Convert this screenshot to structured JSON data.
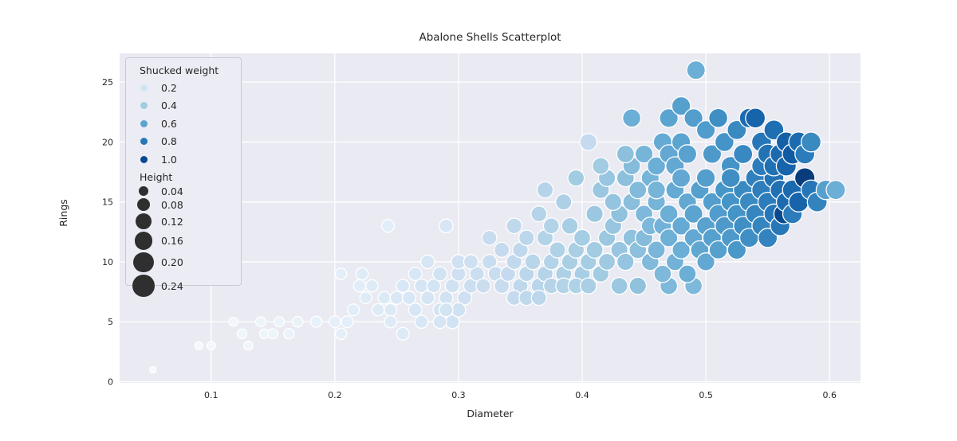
{
  "figure": {
    "background": "#ffffff"
  },
  "style": {
    "plot_background": "#eaeaf2",
    "grid_color": "#ffffff",
    "text_color": "#262626",
    "point_edge_color": "#ffffff",
    "legend_background": "#ececf4",
    "legend_border": "#c9c9d4",
    "size_legend_dot_color": "#2f2f2f",
    "colormap_name": "Blues",
    "colormap_stops": [
      [
        0.0,
        "#f7fbff"
      ],
      [
        0.125,
        "#deebf7"
      ],
      [
        0.25,
        "#c6dbef"
      ],
      [
        0.375,
        "#9ecae1"
      ],
      [
        0.5,
        "#6baed6"
      ],
      [
        0.625,
        "#4292c6"
      ],
      [
        0.75,
        "#2171b5"
      ],
      [
        0.875,
        "#08519c"
      ],
      [
        1.0,
        "#08306b"
      ]
    ]
  },
  "chart_data": {
    "type": "scatter",
    "title": "Abalone Shells Scatterplot",
    "xlabel": "Diameter",
    "ylabel": "Rings",
    "x_ticks": [
      0.1,
      0.2,
      0.3,
      0.4,
      0.5,
      0.6
    ],
    "y_ticks": [
      0,
      5,
      10,
      15,
      20,
      25
    ],
    "xlim": [
      0.026,
      0.625
    ],
    "ylim": [
      -0.1,
      27.4
    ],
    "grid": true,
    "legend_position": "upper left",
    "hue": {
      "name": "Shucked weight",
      "vmin": 0.0,
      "vmax": 1.1,
      "legend_values": [
        "0.2",
        "0.4",
        "0.6",
        "0.8",
        "1.0"
      ]
    },
    "size": {
      "name": "Height",
      "domain": [
        0.01,
        0.25
      ],
      "legend_values": [
        "0.04",
        "0.08",
        "0.12",
        "0.16",
        "0.20",
        "0.24"
      ]
    },
    "columns": [
      "diameter",
      "rings",
      "shucked_weight",
      "height"
    ],
    "points": [
      [
        0.053,
        1,
        0.02,
        0.015
      ],
      [
        0.09,
        3,
        0.03,
        0.025
      ],
      [
        0.1,
        3,
        0.035,
        0.03
      ],
      [
        0.118,
        5,
        0.045,
        0.035
      ],
      [
        0.125,
        4,
        0.05,
        0.04
      ],
      [
        0.13,
        3,
        0.05,
        0.035
      ],
      [
        0.14,
        5,
        0.06,
        0.045
      ],
      [
        0.143,
        4,
        0.055,
        0.04
      ],
      [
        0.15,
        4,
        0.06,
        0.045
      ],
      [
        0.155,
        5,
        0.065,
        0.045
      ],
      [
        0.163,
        4,
        0.07,
        0.05
      ],
      [
        0.17,
        5,
        0.075,
        0.05
      ],
      [
        0.185,
        5,
        0.09,
        0.055
      ],
      [
        0.2,
        5,
        0.1,
        0.06
      ],
      [
        0.205,
        4,
        0.1,
        0.06
      ],
      [
        0.21,
        5,
        0.11,
        0.065
      ],
      [
        0.215,
        6,
        0.12,
        0.065
      ],
      [
        0.205,
        9,
        0.11,
        0.06
      ],
      [
        0.222,
        9,
        0.13,
        0.07
      ],
      [
        0.22,
        8,
        0.12,
        0.07
      ],
      [
        0.23,
        8,
        0.14,
        0.07
      ],
      [
        0.225,
        7,
        0.13,
        0.065
      ],
      [
        0.235,
        6,
        0.14,
        0.07
      ],
      [
        0.24,
        7,
        0.15,
        0.075
      ],
      [
        0.245,
        6,
        0.15,
        0.075
      ],
      [
        0.25,
        7,
        0.16,
        0.08
      ],
      [
        0.255,
        8,
        0.17,
        0.08
      ],
      [
        0.26,
        7,
        0.17,
        0.085
      ],
      [
        0.265,
        6,
        0.18,
        0.085
      ],
      [
        0.27,
        8,
        0.19,
        0.09
      ],
      [
        0.275,
        7,
        0.19,
        0.09
      ],
      [
        0.28,
        8,
        0.2,
        0.09
      ],
      [
        0.285,
        9,
        0.21,
        0.095
      ],
      [
        0.29,
        7,
        0.21,
        0.09
      ],
      [
        0.295,
        8,
        0.22,
        0.095
      ],
      [
        0.3,
        9,
        0.23,
        0.1
      ],
      [
        0.305,
        7,
        0.23,
        0.095
      ],
      [
        0.31,
        8,
        0.24,
        0.1
      ],
      [
        0.315,
        9,
        0.25,
        0.1
      ],
      [
        0.32,
        8,
        0.25,
        0.1
      ],
      [
        0.325,
        10,
        0.26,
        0.105
      ],
      [
        0.33,
        9,
        0.26,
        0.105
      ],
      [
        0.243,
        13,
        0.12,
        0.075
      ],
      [
        0.29,
        13,
        0.18,
        0.09
      ],
      [
        0.3,
        10,
        0.22,
        0.1
      ],
      [
        0.31,
        10,
        0.23,
        0.1
      ],
      [
        0.265,
        9,
        0.17,
        0.085
      ],
      [
        0.275,
        10,
        0.18,
        0.09
      ],
      [
        0.285,
        6,
        0.2,
        0.09
      ],
      [
        0.295,
        5,
        0.21,
        0.09
      ],
      [
        0.245,
        5,
        0.14,
        0.07
      ],
      [
        0.255,
        4,
        0.15,
        0.075
      ],
      [
        0.27,
        5,
        0.17,
        0.08
      ],
      [
        0.285,
        5,
        0.19,
        0.085
      ],
      [
        0.3,
        6,
        0.22,
        0.095
      ],
      [
        0.29,
        6,
        0.2,
        0.09
      ],
      [
        0.335,
        8,
        0.27,
        0.11
      ],
      [
        0.34,
        9,
        0.28,
        0.11
      ],
      [
        0.345,
        10,
        0.29,
        0.115
      ],
      [
        0.35,
        8,
        0.3,
        0.11
      ],
      [
        0.35,
        11,
        0.3,
        0.115
      ],
      [
        0.355,
        9,
        0.31,
        0.115
      ],
      [
        0.36,
        10,
        0.32,
        0.12
      ],
      [
        0.365,
        8,
        0.32,
        0.115
      ],
      [
        0.37,
        9,
        0.33,
        0.12
      ],
      [
        0.37,
        12,
        0.34,
        0.125
      ],
      [
        0.375,
        10,
        0.34,
        0.12
      ],
      [
        0.38,
        11,
        0.35,
        0.125
      ],
      [
        0.385,
        9,
        0.36,
        0.125
      ],
      [
        0.39,
        10,
        0.37,
        0.13
      ],
      [
        0.39,
        13,
        0.38,
        0.13
      ],
      [
        0.395,
        11,
        0.37,
        0.13
      ],
      [
        0.4,
        9,
        0.38,
        0.125
      ],
      [
        0.4,
        12,
        0.39,
        0.135
      ],
      [
        0.405,
        10,
        0.39,
        0.13
      ],
      [
        0.41,
        11,
        0.4,
        0.135
      ],
      [
        0.41,
        14,
        0.42,
        0.14
      ],
      [
        0.415,
        9,
        0.4,
        0.13
      ],
      [
        0.42,
        12,
        0.42,
        0.14
      ],
      [
        0.42,
        10,
        0.41,
        0.135
      ],
      [
        0.425,
        13,
        0.43,
        0.14
      ],
      [
        0.43,
        11,
        0.43,
        0.14
      ],
      [
        0.43,
        14,
        0.45,
        0.145
      ],
      [
        0.435,
        10,
        0.44,
        0.14
      ],
      [
        0.44,
        12,
        0.45,
        0.145
      ],
      [
        0.44,
        15,
        0.47,
        0.15
      ],
      [
        0.445,
        11,
        0.46,
        0.145
      ],
      [
        0.345,
        7,
        0.28,
        0.105
      ],
      [
        0.355,
        7,
        0.3,
        0.11
      ],
      [
        0.365,
        7,
        0.31,
        0.11
      ],
      [
        0.375,
        8,
        0.33,
        0.115
      ],
      [
        0.385,
        8,
        0.34,
        0.12
      ],
      [
        0.395,
        8,
        0.35,
        0.12
      ],
      [
        0.405,
        8,
        0.37,
        0.125
      ],
      [
        0.345,
        13,
        0.3,
        0.115
      ],
      [
        0.335,
        11,
        0.28,
        0.11
      ],
      [
        0.325,
        12,
        0.27,
        0.105
      ],
      [
        0.355,
        12,
        0.31,
        0.115
      ],
      [
        0.365,
        14,
        0.33,
        0.12
      ],
      [
        0.375,
        13,
        0.34,
        0.12
      ],
      [
        0.385,
        15,
        0.36,
        0.125
      ],
      [
        0.395,
        17,
        0.4,
        0.13
      ],
      [
        0.405,
        20,
        0.28,
        0.14
      ],
      [
        0.37,
        16,
        0.33,
        0.125
      ],
      [
        0.415,
        16,
        0.42,
        0.14
      ],
      [
        0.425,
        15,
        0.44,
        0.14
      ],
      [
        0.435,
        17,
        0.46,
        0.15
      ],
      [
        0.43,
        8,
        0.42,
        0.135
      ],
      [
        0.445,
        8,
        0.45,
        0.14
      ],
      [
        0.47,
        8,
        0.5,
        0.145
      ],
      [
        0.49,
        8,
        0.5,
        0.145
      ],
      [
        0.45,
        12,
        0.48,
        0.15
      ],
      [
        0.45,
        14,
        0.5,
        0.15
      ],
      [
        0.455,
        10,
        0.49,
        0.145
      ],
      [
        0.455,
        13,
        0.5,
        0.15
      ],
      [
        0.46,
        11,
        0.51,
        0.15
      ],
      [
        0.46,
        15,
        0.52,
        0.155
      ],
      [
        0.465,
        9,
        0.5,
        0.145
      ],
      [
        0.465,
        13,
        0.53,
        0.155
      ],
      [
        0.47,
        12,
        0.54,
        0.155
      ],
      [
        0.47,
        14,
        0.55,
        0.16
      ],
      [
        0.475,
        10,
        0.53,
        0.15
      ],
      [
        0.475,
        16,
        0.57,
        0.16
      ],
      [
        0.48,
        11,
        0.55,
        0.155
      ],
      [
        0.48,
        13,
        0.57,
        0.16
      ],
      [
        0.485,
        15,
        0.58,
        0.16
      ],
      [
        0.485,
        9,
        0.55,
        0.15
      ],
      [
        0.49,
        12,
        0.58,
        0.16
      ],
      [
        0.49,
        14,
        0.6,
        0.165
      ],
      [
        0.495,
        11,
        0.59,
        0.16
      ],
      [
        0.495,
        16,
        0.62,
        0.165
      ],
      [
        0.5,
        13,
        0.61,
        0.165
      ],
      [
        0.5,
        10,
        0.58,
        0.155
      ],
      [
        0.505,
        15,
        0.63,
        0.17
      ],
      [
        0.505,
        12,
        0.62,
        0.165
      ],
      [
        0.51,
        14,
        0.64,
        0.17
      ],
      [
        0.51,
        11,
        0.62,
        0.16
      ],
      [
        0.515,
        13,
        0.65,
        0.17
      ],
      [
        0.515,
        16,
        0.67,
        0.175
      ],
      [
        0.52,
        12,
        0.65,
        0.17
      ],
      [
        0.52,
        15,
        0.68,
        0.175
      ],
      [
        0.525,
        14,
        0.68,
        0.175
      ],
      [
        0.525,
        11,
        0.66,
        0.17
      ],
      [
        0.53,
        13,
        0.7,
        0.175
      ],
      [
        0.53,
        16,
        0.72,
        0.18
      ],
      [
        0.535,
        15,
        0.72,
        0.18
      ],
      [
        0.535,
        12,
        0.7,
        0.175
      ],
      [
        0.54,
        14,
        0.74,
        0.18
      ],
      [
        0.54,
        17,
        0.76,
        0.185
      ],
      [
        0.545,
        13,
        0.74,
        0.18
      ],
      [
        0.545,
        16,
        0.77,
        0.185
      ],
      [
        0.55,
        15,
        0.78,
        0.185
      ],
      [
        0.55,
        12,
        0.75,
        0.18
      ],
      [
        0.555,
        14,
        0.8,
        0.19
      ],
      [
        0.555,
        17,
        0.82,
        0.19
      ],
      [
        0.56,
        13,
        0.8,
        0.185
      ],
      [
        0.56,
        16,
        0.83,
        0.19
      ],
      [
        0.563,
        14,
        1.0,
        0.19
      ],
      [
        0.565,
        15,
        0.85,
        0.19
      ],
      [
        0.57,
        14,
        0.78,
        0.185
      ],
      [
        0.57,
        16,
        0.86,
        0.195
      ],
      [
        0.575,
        15,
        0.88,
        0.195
      ],
      [
        0.58,
        17,
        1.05,
        0.2
      ],
      [
        0.585,
        16,
        0.8,
        0.195
      ],
      [
        0.59,
        15,
        0.75,
        0.19
      ],
      [
        0.597,
        16,
        0.62,
        0.185
      ],
      [
        0.605,
        16,
        0.55,
        0.18
      ],
      [
        0.44,
        18,
        0.48,
        0.15
      ],
      [
        0.45,
        19,
        0.52,
        0.155
      ],
      [
        0.455,
        17,
        0.52,
        0.155
      ],
      [
        0.46,
        18,
        0.55,
        0.16
      ],
      [
        0.465,
        20,
        0.57,
        0.165
      ],
      [
        0.47,
        19,
        0.58,
        0.165
      ],
      [
        0.475,
        18,
        0.58,
        0.165
      ],
      [
        0.48,
        20,
        0.6,
        0.17
      ],
      [
        0.485,
        19,
        0.61,
        0.17
      ],
      [
        0.44,
        22,
        0.55,
        0.16
      ],
      [
        0.47,
        22,
        0.6,
        0.17
      ],
      [
        0.48,
        23,
        0.62,
        0.17
      ],
      [
        0.49,
        22,
        0.63,
        0.17
      ],
      [
        0.492,
        26,
        0.55,
        0.165
      ],
      [
        0.5,
        21,
        0.64,
        0.17
      ],
      [
        0.505,
        19,
        0.65,
        0.17
      ],
      [
        0.51,
        22,
        0.7,
        0.175
      ],
      [
        0.515,
        20,
        0.68,
        0.175
      ],
      [
        0.52,
        18,
        0.68,
        0.175
      ],
      [
        0.525,
        21,
        0.72,
        0.18
      ],
      [
        0.53,
        19,
        0.73,
        0.18
      ],
      [
        0.535,
        22,
        0.85,
        0.185
      ],
      [
        0.54,
        22,
        0.88,
        0.19
      ],
      [
        0.545,
        18,
        0.78,
        0.185
      ],
      [
        0.545,
        20,
        0.8,
        0.19
      ],
      [
        0.55,
        19,
        0.82,
        0.19
      ],
      [
        0.555,
        21,
        0.84,
        0.19
      ],
      [
        0.555,
        18,
        0.83,
        0.19
      ],
      [
        0.56,
        19,
        0.86,
        0.195
      ],
      [
        0.565,
        18,
        0.88,
        0.195
      ],
      [
        0.565,
        20,
        0.9,
        0.195
      ],
      [
        0.57,
        19,
        0.92,
        0.2
      ],
      [
        0.575,
        20,
        0.85,
        0.195
      ],
      [
        0.58,
        19,
        0.78,
        0.19
      ],
      [
        0.585,
        20,
        0.72,
        0.19
      ],
      [
        0.52,
        17,
        0.7,
        0.175
      ],
      [
        0.5,
        17,
        0.63,
        0.17
      ],
      [
        0.48,
        17,
        0.58,
        0.165
      ],
      [
        0.46,
        16,
        0.52,
        0.155
      ],
      [
        0.445,
        16,
        0.49,
        0.15
      ],
      [
        0.435,
        19,
        0.46,
        0.15
      ],
      [
        0.42,
        17,
        0.43,
        0.14
      ],
      [
        0.415,
        18,
        0.4,
        0.135
      ]
    ]
  }
}
